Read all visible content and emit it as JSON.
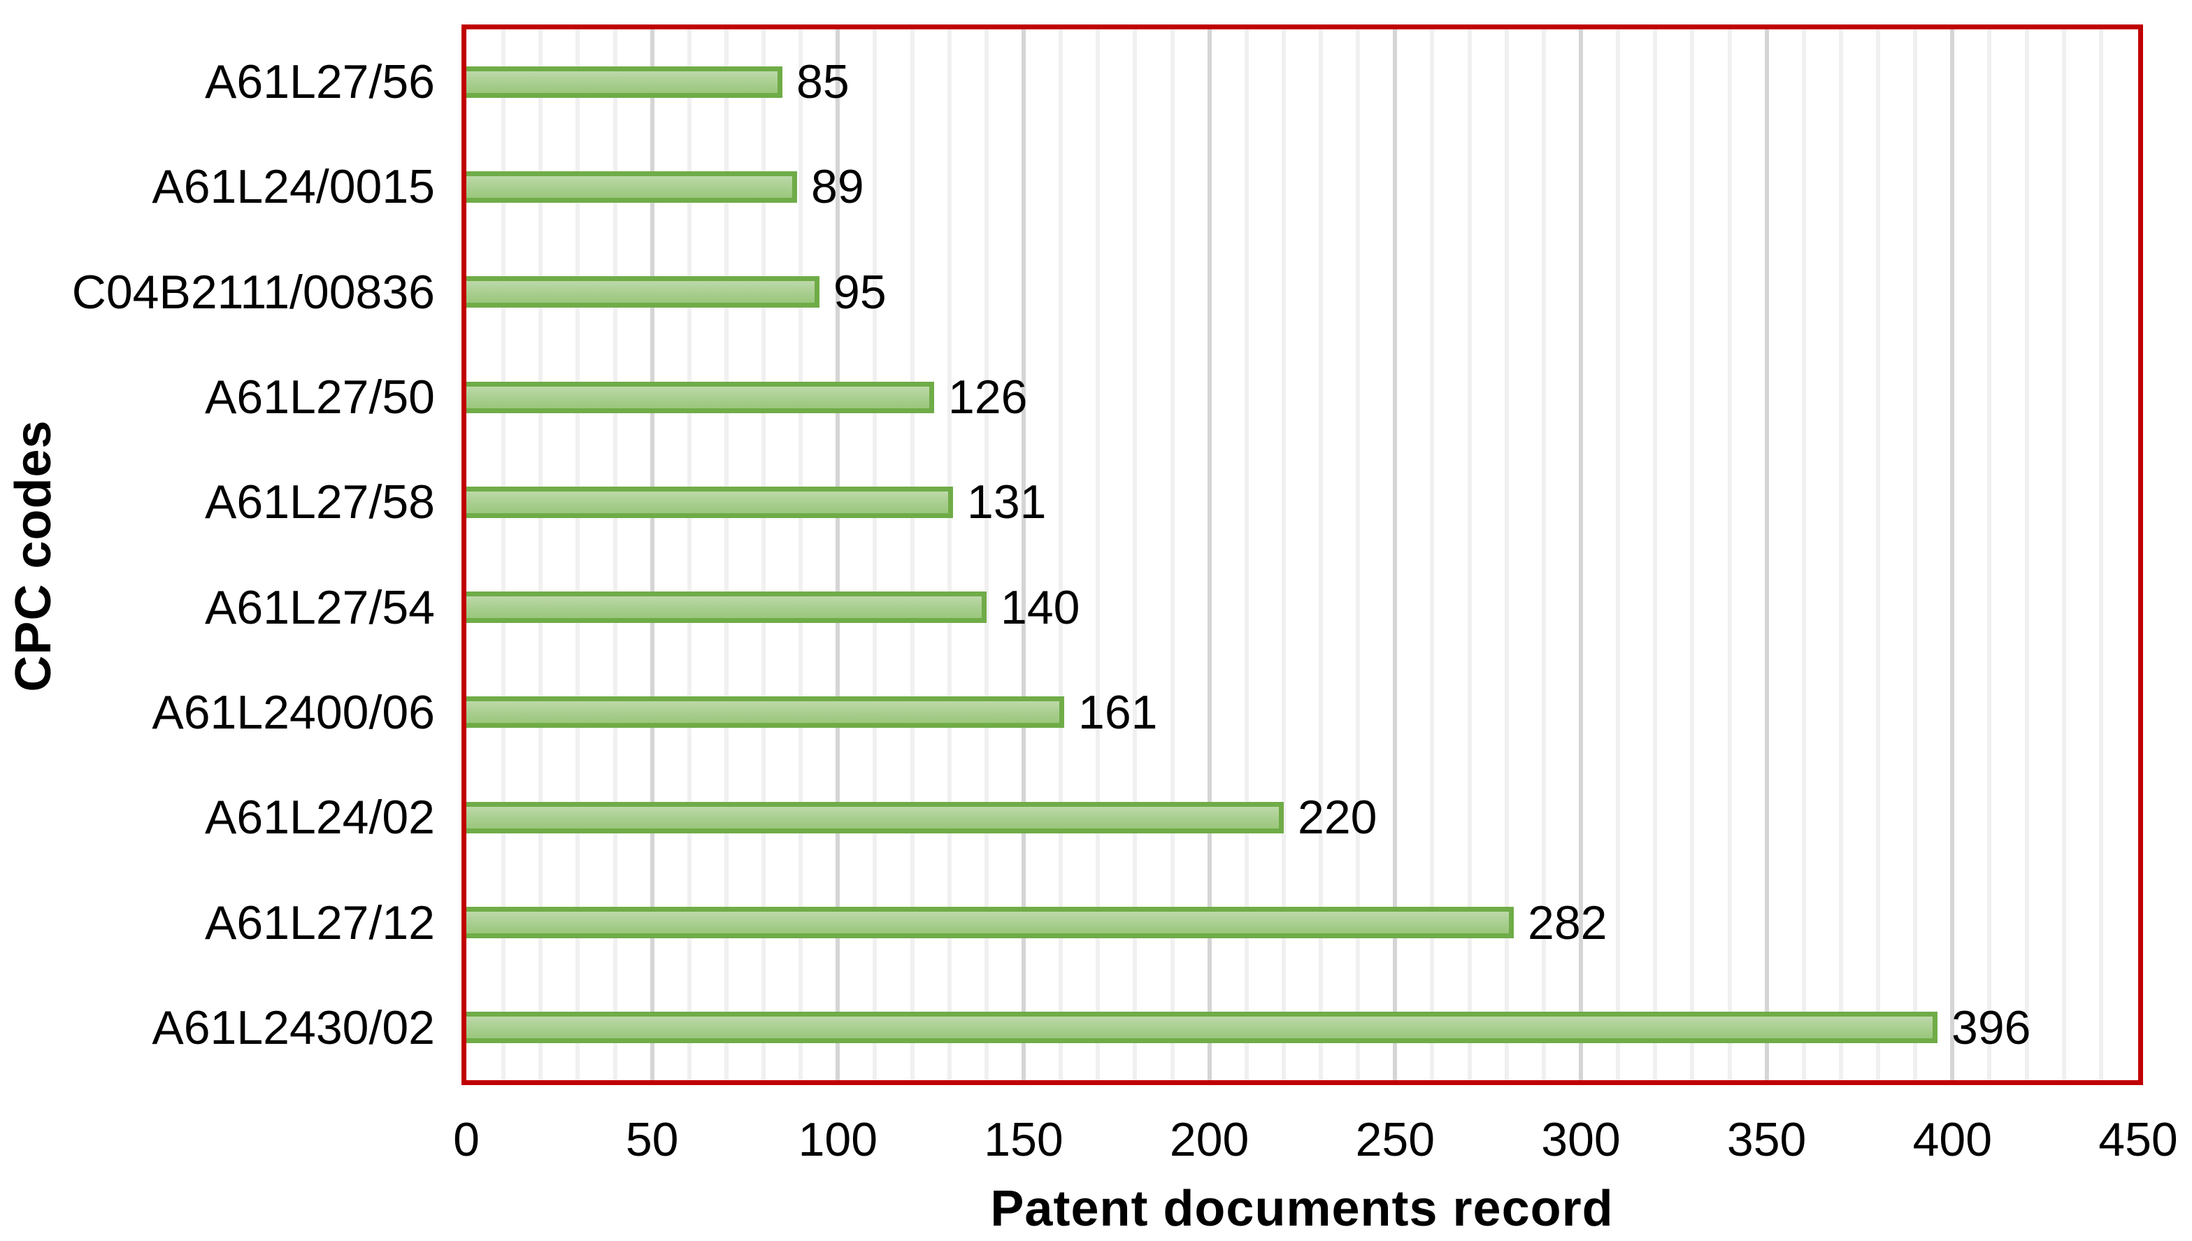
{
  "chart_data": {
    "type": "bar",
    "orientation": "horizontal",
    "title": "",
    "xlabel": "Patent documents record",
    "ylabel": "CPC codes",
    "categories": [
      "A61L27/56",
      "A61L24/0015",
      "C04B2111/00836",
      "A61L27/50",
      "A61L27/58",
      "A61L27/54",
      "A61L2400/06",
      "A61L24/02",
      "A61L27/12",
      "A61L2430/02"
    ],
    "values": [
      85,
      89,
      95,
      126,
      131,
      140,
      161,
      220,
      282,
      396
    ],
    "data_labels": [
      85,
      89,
      95,
      126,
      131,
      140,
      161,
      220,
      282,
      396
    ],
    "xlim": [
      0,
      450
    ],
    "xticks": [
      0,
      50,
      100,
      150,
      200,
      250,
      300,
      350,
      400,
      450
    ],
    "minor_grid_step": 10,
    "major_grid_step": 50,
    "grid": "vertical",
    "legend": "none",
    "colors": {
      "bar_fill_top": "#BDD9A9",
      "bar_fill_bottom": "#9BC77C",
      "bar_border": "#6FAC47",
      "plot_border": "#C00000",
      "minor_gridline": "#F0F0F0",
      "major_gridline": "#D5D5D5",
      "text": "#000000",
      "background": "#FFFFFF"
    }
  }
}
